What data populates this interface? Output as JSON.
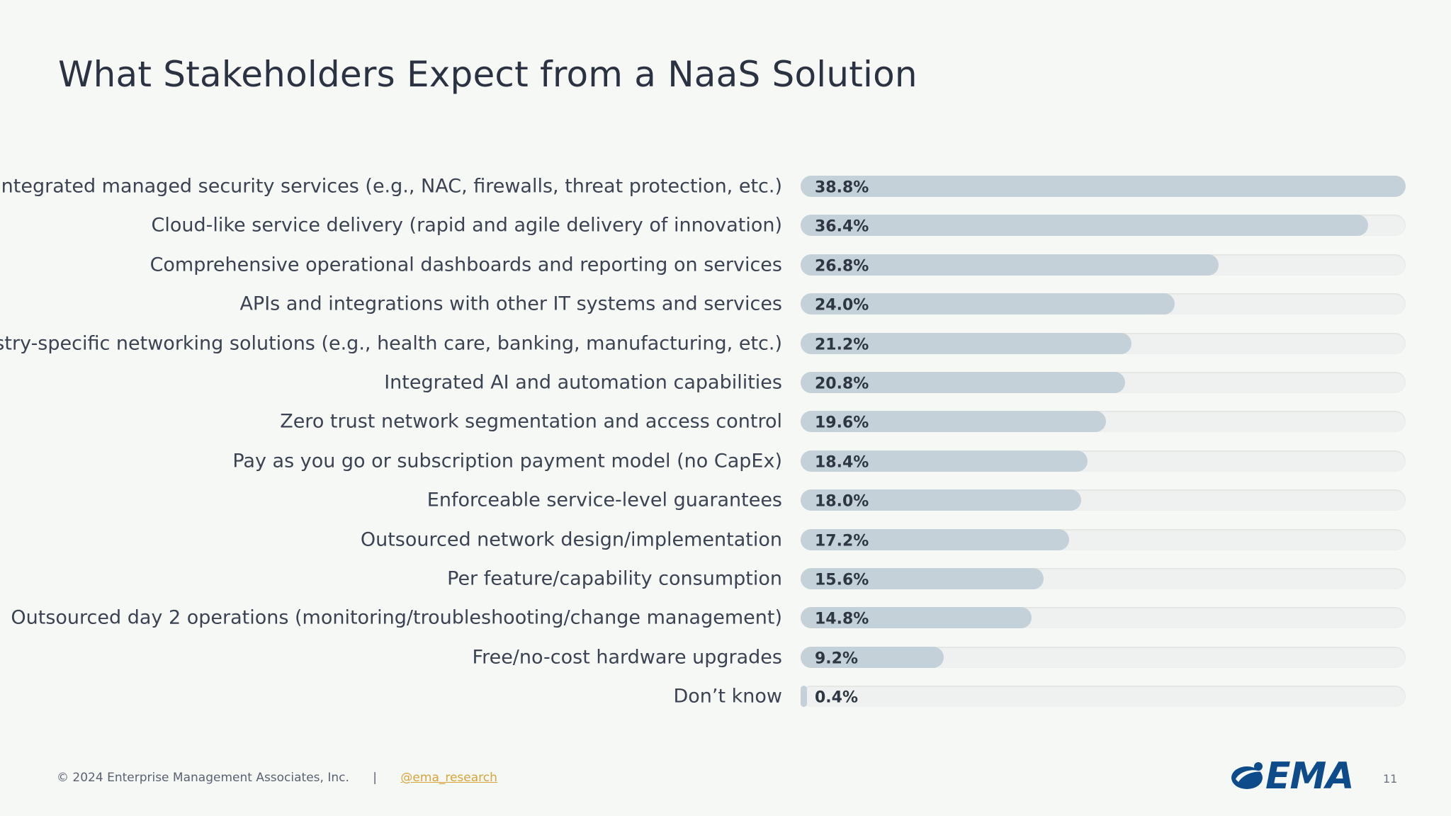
{
  "title": "What Stakeholders Expect from a NaaS Solution",
  "chart_data": {
    "type": "bar",
    "orientation": "horizontal",
    "categories": [
      "Integrated managed security services (e.g., NAC, firewalls, threat protection, etc.)",
      "Cloud-like service delivery (rapid and agile delivery of innovation)",
      "Comprehensive operational dashboards and reporting on services",
      "APIs and integrations with other IT systems and services",
      "Industry-specific networking solutions (e.g., health care, banking, manufacturing, etc.)",
      "Integrated AI and automation capabilities",
      "Zero trust network segmentation and access control",
      "Pay as you go or subscription payment model (no CapEx)",
      "Enforceable service-level guarantees",
      "Outsourced network design/implementation",
      "Per feature/capability consumption",
      "Outsourced day 2 operations (monitoring/troubleshooting/change management)",
      "Free/no-cost hardware upgrades",
      "Don’t know"
    ],
    "values": [
      38.8,
      36.4,
      26.8,
      24.0,
      21.2,
      20.8,
      19.6,
      18.4,
      18.0,
      17.2,
      15.6,
      14.8,
      9.2,
      0.4
    ],
    "value_labels": [
      "38.8%",
      "36.4%",
      "26.8%",
      "24.0%",
      "21.2%",
      "20.8%",
      "19.6%",
      "18.4%",
      "18.0%",
      "17.2%",
      "15.6%",
      "14.8%",
      "9.2%",
      "0.4%"
    ],
    "xlim": [
      0,
      38.8
    ],
    "bar_color": "#c5d1d9",
    "track_color": "#eef1ef"
  },
  "footer": {
    "copyright": "© 2024 Enterprise Management Associates, Inc.",
    "separator": "|",
    "handle": "@ema_research",
    "logo_text": "EMA",
    "page_number": "11"
  },
  "colors": {
    "background": "#f6f8f6",
    "text": "#2b3342",
    "link": "#d9a43a",
    "logo": "#0d4b8a"
  }
}
